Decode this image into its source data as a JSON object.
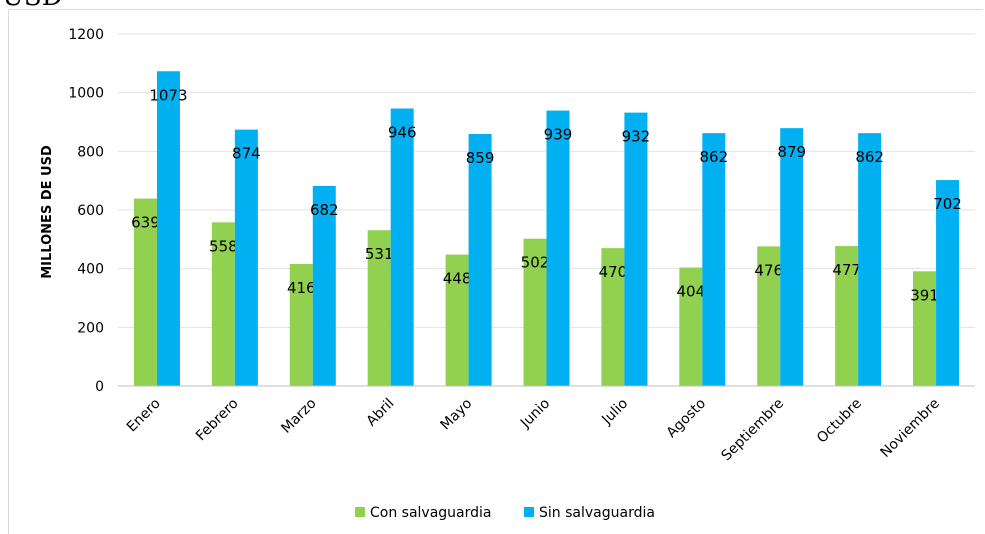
{
  "header_fragment": "USD",
  "chart_data": {
    "type": "bar",
    "categories": [
      "Enero",
      "Febrero",
      "Marzo",
      "Abril",
      "Mayo",
      "Junio",
      "Julio",
      "Agosto",
      "Septiembre",
      "Octubre",
      "Noviembre"
    ],
    "series": [
      {
        "name": "Con salvaguardia",
        "color": "#92d050",
        "values": [
          639,
          558,
          416,
          531,
          448,
          502,
          470,
          404,
          476,
          477,
          391
        ]
      },
      {
        "name": "Sin salvaguardia",
        "color": "#00b0f0",
        "values": [
          1073,
          874,
          682,
          946,
          859,
          939,
          932,
          862,
          879,
          862,
          702
        ]
      }
    ],
    "ylabel": "MILLONES DE USD",
    "xlabel": "",
    "ylim": [
      0,
      1200
    ],
    "yticks": [
      0,
      200,
      400,
      600,
      800,
      1000,
      1200
    ],
    "grid": true,
    "legend": "bottom"
  }
}
